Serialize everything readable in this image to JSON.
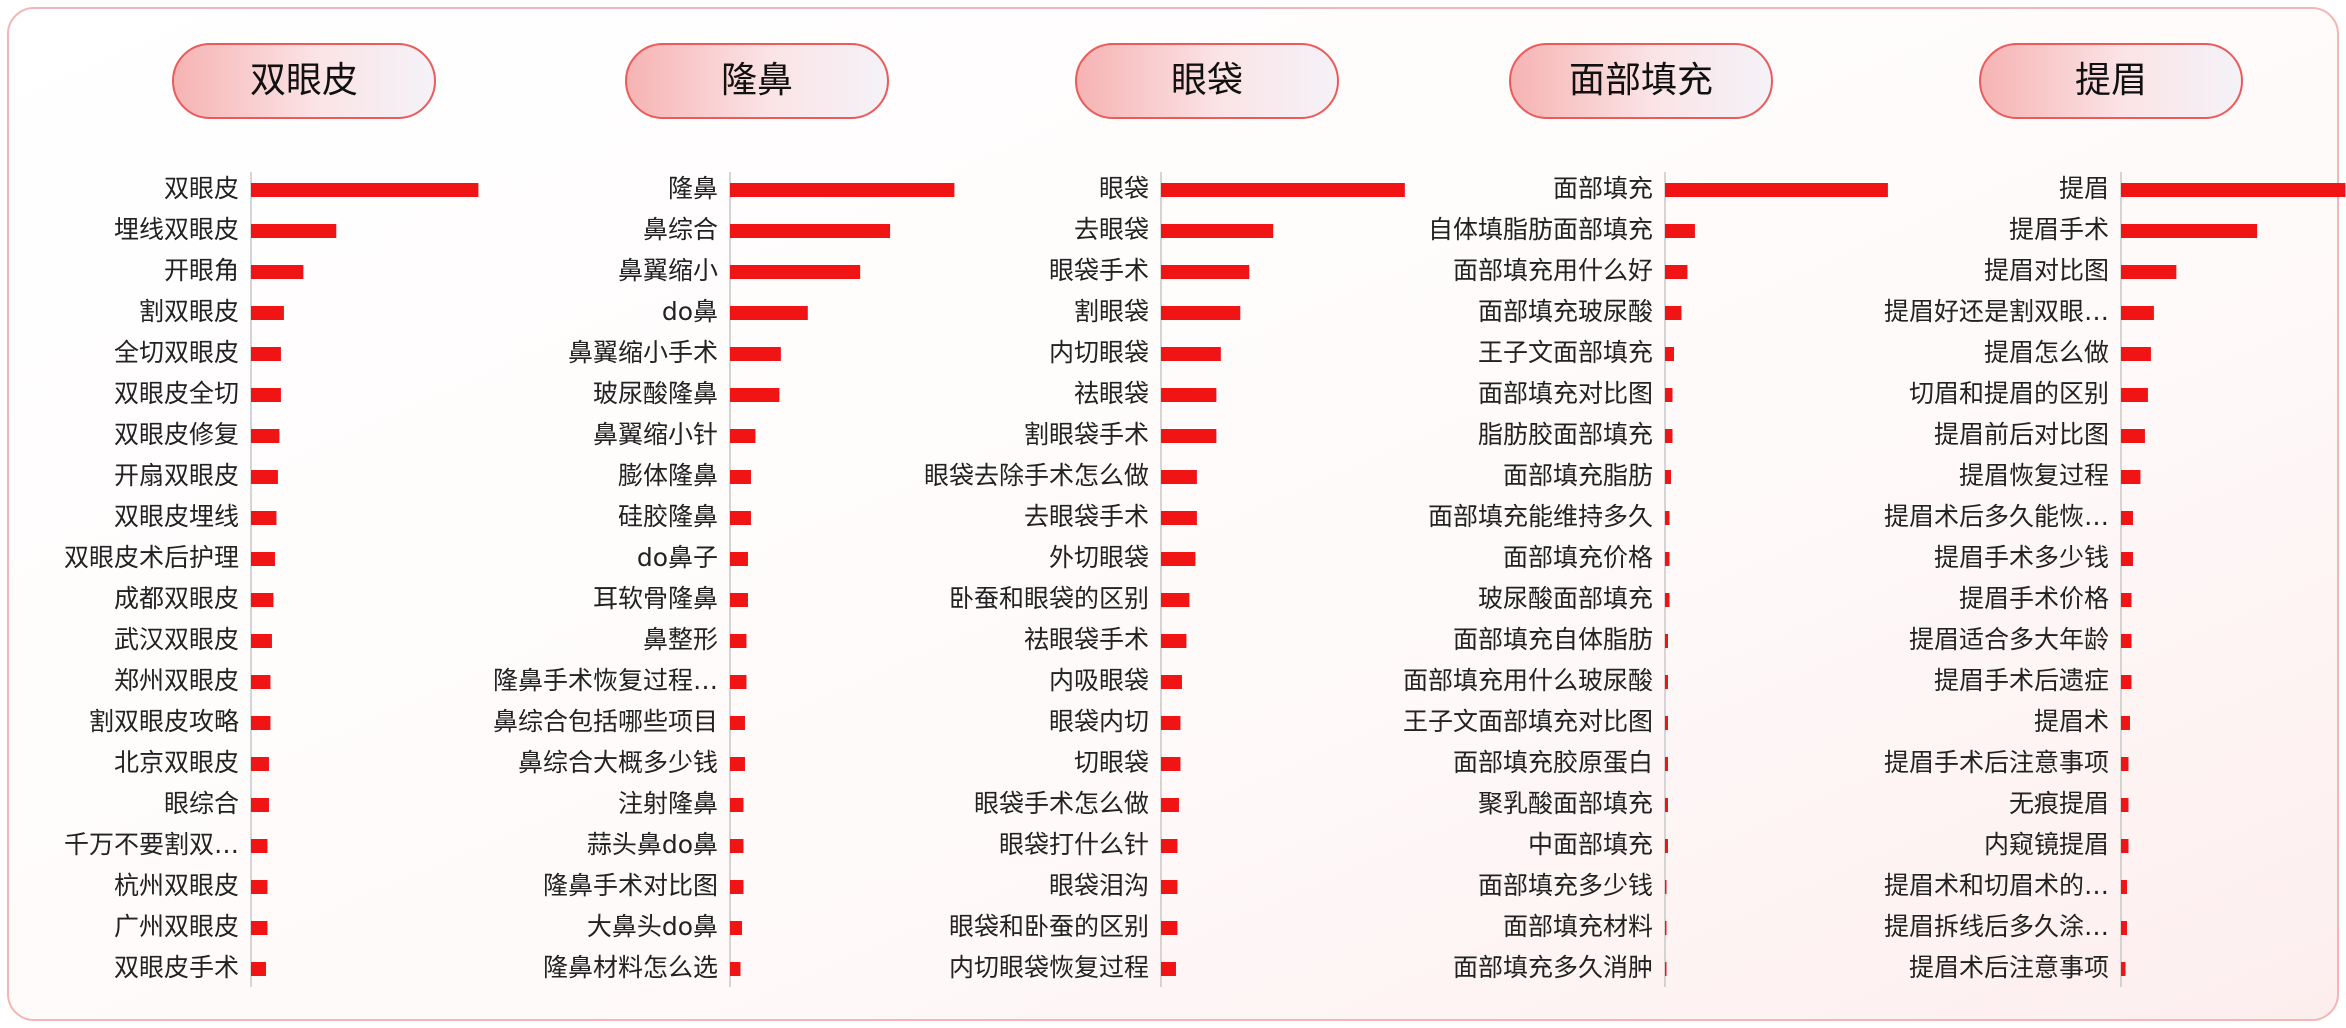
{
  "chart_data": [
    {
      "type": "bar",
      "orientation": "horizontal",
      "title": "双眼皮",
      "color": "#f01414",
      "categories": [
        "双眼皮",
        "埋线双眼皮",
        "开眼角",
        "割双眼皮",
        "全切双眼皮",
        "双眼皮全切",
        "双眼皮修复",
        "开扇双眼皮",
        "双眼皮埋线",
        "双眼皮术后护理",
        "成都双眼皮",
        "武汉双眼皮",
        "郑州双眼皮",
        "割双眼皮攻略",
        "北京双眼皮",
        "眼综合",
        "千万不要割双…",
        "杭州双眼皮",
        "广州双眼皮",
        "双眼皮手术"
      ],
      "values": [
        152,
        57,
        35,
        22,
        20,
        20,
        19,
        18,
        17,
        16,
        15,
        14,
        13,
        13,
        12,
        12,
        11,
        11,
        11,
        10
      ]
    },
    {
      "type": "bar",
      "orientation": "horizontal",
      "title": "隆鼻",
      "color": "#f01414",
      "categories": [
        "隆鼻",
        "鼻综合",
        "鼻翼缩小",
        "do鼻",
        "鼻翼缩小手术",
        "玻尿酸隆鼻",
        "鼻翼缩小针",
        "膨体隆鼻",
        "硅胶隆鼻",
        "do鼻子",
        "耳软骨隆鼻",
        "鼻整形",
        "隆鼻手术恢复过程…",
        "鼻综合包括哪些项目",
        "鼻综合大概多少钱",
        "注射隆鼻",
        "蒜头鼻do鼻",
        "隆鼻手术对比图",
        "大鼻头do鼻",
        "隆鼻材料怎么选"
      ],
      "values": [
        150,
        107,
        87,
        52,
        34,
        33,
        17,
        14,
        14,
        12,
        12,
        11,
        11,
        10,
        10,
        9,
        9,
        9,
        8,
        7
      ]
    },
    {
      "type": "bar",
      "orientation": "horizontal",
      "title": "眼袋",
      "color": "#f01414",
      "categories": [
        "眼袋",
        "去眼袋",
        "眼袋手术",
        "割眼袋",
        "内切眼袋",
        "祛眼袋",
        "割眼袋手术",
        "眼袋去除手术怎么做",
        "去眼袋手术",
        "外切眼袋",
        "卧蚕和眼袋的区别",
        "祛眼袋手术",
        "内吸眼袋",
        "眼袋内切",
        "切眼袋",
        "眼袋手术怎么做",
        "眼袋打什么针",
        "眼袋泪沟",
        "眼袋和卧蚕的区别",
        "内切眼袋恢复过程"
      ],
      "values": [
        163,
        75,
        59,
        53,
        40,
        37,
        37,
        24,
        24,
        23,
        19,
        17,
        14,
        13,
        13,
        12,
        11,
        11,
        11,
        10
      ]
    },
    {
      "type": "bar",
      "orientation": "horizontal",
      "title": "面部填充",
      "color": "#f01414",
      "categories": [
        "面部填充",
        "自体填脂肪面部填充",
        "面部填充用什么好",
        "面部填充玻尿酸",
        "王子文面部填充",
        "面部填充对比图",
        "脂肪胶面部填充",
        "面部填充脂肪",
        "面部填充能维持多久",
        "面部填充价格",
        "玻尿酸面部填充",
        "面部填充自体脂肪",
        "面部填充用什么玻尿酸",
        "王子文面部填充对比图",
        "面部填充胶原蛋白",
        "聚乳酸面部填充",
        "中面部填充",
        "面部填充多少钱",
        "面部填充材料",
        "面部填充多久消肿"
      ],
      "values": [
        149,
        20,
        15,
        11,
        6,
        5,
        5,
        4,
        3,
        3,
        3,
        2,
        2,
        2,
        2,
        2,
        2,
        1,
        1,
        1
      ]
    },
    {
      "type": "bar",
      "orientation": "horizontal",
      "title": "提眉",
      "color": "#f01414",
      "categories": [
        "提眉",
        "提眉手术",
        "提眉对比图",
        "提眉好还是割双眼…",
        "提眉怎么做",
        "切眉和提眉的区别",
        "提眉前后对比图",
        "提眉恢复过程",
        "提眉术后多久能恢…",
        "提眉手术多少钱",
        "提眉手术价格",
        "提眉适合多大年龄",
        "提眉手术后遗症",
        "提眉术",
        "提眉手术后注意事项",
        "无痕提眉",
        "内窥镜提眉",
        "提眉术和切眉术的…",
        "提眉拆线后多久涂…",
        "提眉术后注意事项"
      ],
      "values": [
        150,
        91,
        37,
        22,
        20,
        18,
        16,
        13,
        8,
        8,
        7,
        7,
        7,
        6,
        5,
        5,
        5,
        4,
        4,
        3
      ]
    }
  ]
}
